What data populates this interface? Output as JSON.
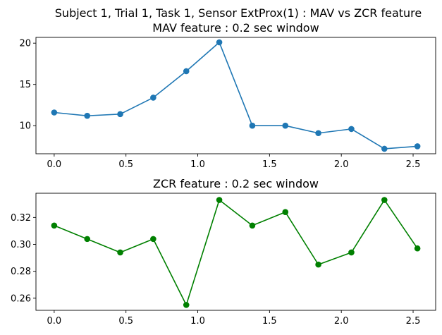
{
  "suptitle": "Subject 1, Trial 1, Task 1, Sensor ExtProx(1) : MAV vs ZCR feature",
  "chart_data": [
    {
      "type": "line",
      "title": "MAV feature : 0.2 sec window",
      "xlabel": "",
      "ylabel": "",
      "xlim": [
        -0.127,
        2.657
      ],
      "ylim": [
        6.6,
        20.7
      ],
      "xticks": [
        0.0,
        0.5,
        1.0,
        1.5,
        2.0,
        2.5
      ],
      "xtick_labels": [
        "0.0",
        "0.5",
        "1.0",
        "1.5",
        "2.0",
        "2.5"
      ],
      "yticks": [
        10,
        15,
        20
      ],
      "ytick_labels": [
        "10",
        "15",
        "20"
      ],
      "grid": false,
      "series": [
        {
          "color": "#1f77b4",
          "marker": "circle",
          "x": [
            0.0,
            0.23,
            0.46,
            0.69,
            0.92,
            1.15,
            1.38,
            1.61,
            1.84,
            2.07,
            2.3,
            2.53
          ],
          "y": [
            11.6,
            11.2,
            11.4,
            13.4,
            16.6,
            20.1,
            10.0,
            10.0,
            9.1,
            9.6,
            7.2,
            7.5
          ]
        }
      ]
    },
    {
      "type": "line",
      "title": "ZCR feature : 0.2 sec window",
      "xlabel": "",
      "ylabel": "",
      "xlim": [
        -0.127,
        2.657
      ],
      "ylim": [
        0.251,
        0.338
      ],
      "xticks": [
        0.0,
        0.5,
        1.0,
        1.5,
        2.0,
        2.5
      ],
      "xtick_labels": [
        "0.0",
        "0.5",
        "1.0",
        "1.5",
        "2.0",
        "2.5"
      ],
      "yticks": [
        0.26,
        0.28,
        0.3,
        0.32
      ],
      "ytick_labels": [
        "0.26",
        "0.28",
        "0.30",
        "0.32"
      ],
      "grid": false,
      "series": [
        {
          "color": "#008000",
          "marker": "circle",
          "x": [
            0.0,
            0.23,
            0.46,
            0.69,
            0.92,
            1.15,
            1.38,
            1.61,
            1.84,
            2.07,
            2.3,
            2.53
          ],
          "y": [
            0.314,
            0.304,
            0.294,
            0.304,
            0.255,
            0.333,
            0.314,
            0.324,
            0.285,
            0.294,
            0.333,
            0.297
          ]
        }
      ]
    }
  ]
}
